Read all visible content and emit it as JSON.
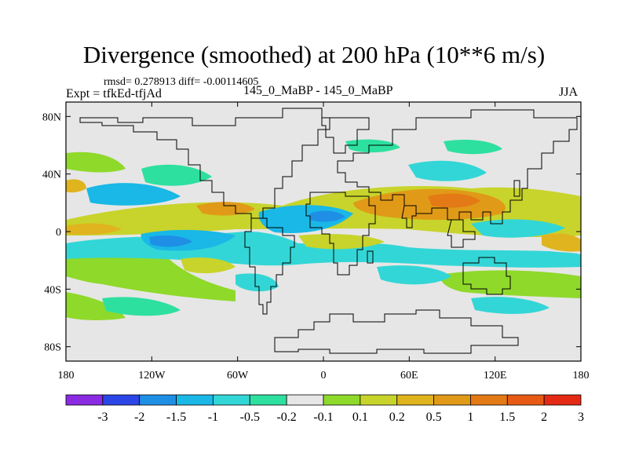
{
  "title": "Divergence (smoothed) at 200 hPa (10**6 m/s)",
  "stats": "rmsd= 0.278913 diff= -0.00114605",
  "expt": "Expt = tfkEd-tfjAd",
  "case": "145_0_MaBP - 145_0_MaBP",
  "season": "JJA",
  "map": {
    "background": "#e6e6e6",
    "lat_ticks": [
      {
        "label": "80N",
        "lat": 80
      },
      {
        "label": "40N",
        "lat": 40
      },
      {
        "label": "0",
        "lat": 0
      },
      {
        "label": "40S",
        "lat": -40
      },
      {
        "label": "80S",
        "lat": -80
      }
    ],
    "lon_ticks": [
      {
        "label": "180",
        "lon": -180
      },
      {
        "label": "120W",
        "lon": -120
      },
      {
        "label": "60W",
        "lon": -60
      },
      {
        "label": "0",
        "lon": 0
      },
      {
        "label": "60E",
        "lon": 60
      },
      {
        "label": "120E",
        "lon": 120
      },
      {
        "label": "180",
        "lon": 180
      }
    ]
  },
  "colorbar": {
    "colors": [
      "#8a2be2",
      "#2b45e6",
      "#1f8fe6",
      "#19b8e6",
      "#33d6d6",
      "#2ee0a0",
      "#e6e6e6",
      "#8fd92b",
      "#c8d42b",
      "#e0b41f",
      "#e09a18",
      "#e37a15",
      "#e85a14",
      "#e42a14"
    ],
    "labels": [
      "-3",
      "-2",
      "-1.5",
      "-1",
      "-0.5",
      "-0.2",
      "-0.1",
      "0.1",
      "0.2",
      "0.5",
      "1",
      "1.5",
      "2",
      "3"
    ]
  }
}
